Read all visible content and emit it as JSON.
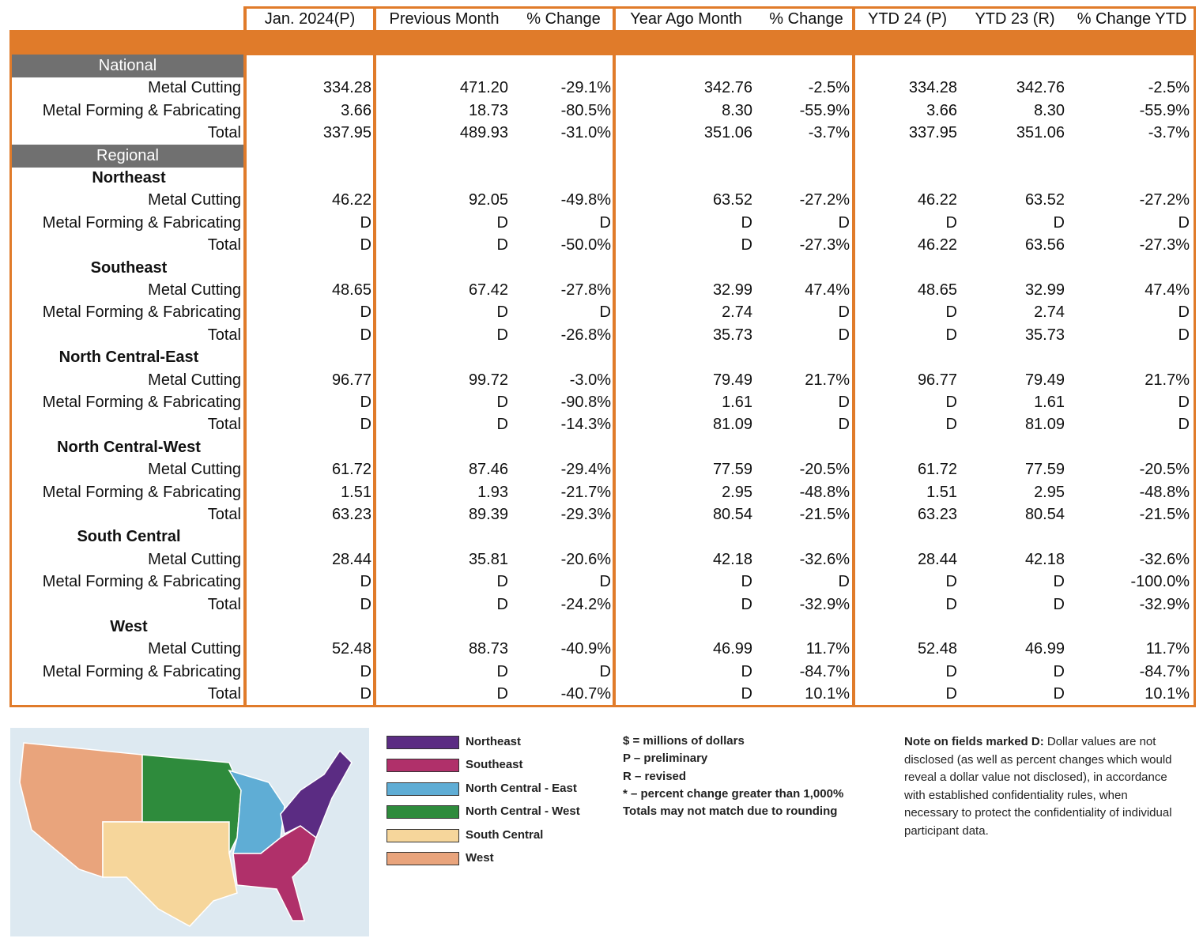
{
  "table": {
    "columns": [
      "Jan. 2024(P)",
      "Previous Month",
      "% Change",
      "Year Ago Month",
      "% Change",
      "YTD 24 (P)",
      "YTD 23 (R)",
      "% Change YTD"
    ],
    "national": {
      "title": "National",
      "rows": [
        {
          "label": "Metal Cutting",
          "cells": [
            "334.28",
            "471.20",
            "-29.1%",
            "342.76",
            "-2.5%",
            "334.28",
            "342.76",
            "-2.5%"
          ]
        },
        {
          "label": "Metal Forming & Fabricating",
          "cells": [
            "3.66",
            "18.73",
            "-80.5%",
            "8.30",
            "-55.9%",
            "3.66",
            "8.30",
            "-55.9%"
          ]
        },
        {
          "label": "Total",
          "cells": [
            "337.95",
            "489.93",
            "-31.0%",
            "351.06",
            "-3.7%",
            "337.95",
            "351.06",
            "-3.7%"
          ]
        }
      ]
    },
    "regional": {
      "title": "Regional",
      "regions": [
        {
          "name": "Northeast",
          "rows": [
            {
              "label": "Metal Cutting",
              "cells": [
                "46.22",
                "92.05",
                "-49.8%",
                "63.52",
                "-27.2%",
                "46.22",
                "63.52",
                "-27.2%"
              ]
            },
            {
              "label": "Metal Forming & Fabricating",
              "cells": [
                "D",
                "D",
                "D",
                "D",
                "D",
                "D",
                "D",
                "D"
              ]
            },
            {
              "label": "Total",
              "cells": [
                "D",
                "D",
                "-50.0%",
                "D",
                "-27.3%",
                "46.22",
                "63.56",
                "-27.3%"
              ]
            }
          ]
        },
        {
          "name": "Southeast",
          "rows": [
            {
              "label": "Metal Cutting",
              "cells": [
                "48.65",
                "67.42",
                "-27.8%",
                "32.99",
                "47.4%",
                "48.65",
                "32.99",
                "47.4%"
              ]
            },
            {
              "label": "Metal Forming & Fabricating",
              "cells": [
                "D",
                "D",
                "D",
                "2.74",
                "D",
                "D",
                "2.74",
                "D"
              ]
            },
            {
              "label": "Total",
              "cells": [
                "D",
                "D",
                "-26.8%",
                "35.73",
                "D",
                "D",
                "35.73",
                "D"
              ]
            }
          ]
        },
        {
          "name": "North Central-East",
          "rows": [
            {
              "label": "Metal Cutting",
              "cells": [
                "96.77",
                "99.72",
                "-3.0%",
                "79.49",
                "21.7%",
                "96.77",
                "79.49",
                "21.7%"
              ]
            },
            {
              "label": "Metal Forming & Fabricating",
              "cells": [
                "D",
                "D",
                "-90.8%",
                "1.61",
                "D",
                "D",
                "1.61",
                "D"
              ]
            },
            {
              "label": "Total",
              "cells": [
                "D",
                "D",
                "-14.3%",
                "81.09",
                "D",
                "D",
                "81.09",
                "D"
              ]
            }
          ]
        },
        {
          "name": "North Central-West",
          "rows": [
            {
              "label": "Metal Cutting",
              "cells": [
                "61.72",
                "87.46",
                "-29.4%",
                "77.59",
                "-20.5%",
                "61.72",
                "77.59",
                "-20.5%"
              ]
            },
            {
              "label": "Metal Forming & Fabricating",
              "cells": [
                "1.51",
                "1.93",
                "-21.7%",
                "2.95",
                "-48.8%",
                "1.51",
                "2.95",
                "-48.8%"
              ]
            },
            {
              "label": "Total",
              "cells": [
                "63.23",
                "89.39",
                "-29.3%",
                "80.54",
                "-21.5%",
                "63.23",
                "80.54",
                "-21.5%"
              ]
            }
          ]
        },
        {
          "name": "South Central",
          "rows": [
            {
              "label": "Metal Cutting",
              "cells": [
                "28.44",
                "35.81",
                "-20.6%",
                "42.18",
                "-32.6%",
                "28.44",
                "42.18",
                "-32.6%"
              ]
            },
            {
              "label": "Metal Forming & Fabricating",
              "cells": [
                "D",
                "D",
                "D",
                "D",
                "D",
                "D",
                "D",
                "-100.0%"
              ]
            },
            {
              "label": "Total",
              "cells": [
                "D",
                "D",
                "-24.2%",
                "D",
                "-32.9%",
                "D",
                "D",
                "-32.9%"
              ]
            }
          ]
        },
        {
          "name": "West",
          "rows": [
            {
              "label": "Metal Cutting",
              "cells": [
                "52.48",
                "88.73",
                "-40.9%",
                "46.99",
                "11.7%",
                "52.48",
                "46.99",
                "11.7%"
              ]
            },
            {
              "label": "Metal Forming & Fabricating",
              "cells": [
                "D",
                "D",
                "D",
                "D",
                "-84.7%",
                "D",
                "D",
                "-84.7%"
              ]
            },
            {
              "label": "Total",
              "cells": [
                "D",
                "D",
                "-40.7%",
                "D",
                "10.1%",
                "D",
                "D",
                "10.1%"
              ]
            }
          ]
        }
      ]
    }
  },
  "legend": [
    {
      "label": "Northeast",
      "color": "#5b2c83"
    },
    {
      "label": "Southeast",
      "color": "#b0306a"
    },
    {
      "label": "North Central - East",
      "color": "#5fadd5"
    },
    {
      "label": "North Central - West",
      "color": "#2e8b3c"
    },
    {
      "label": "South Central",
      "color": "#f6d69b"
    },
    {
      "label": "West",
      "color": "#e9a47c"
    }
  ],
  "notes": [
    "$ = millions of dollars",
    "P – preliminary",
    "R – revised",
    "* – percent change greater than 1,000%",
    "Totals may not match due to rounding"
  ],
  "note_d": {
    "heading": "Note on fields marked D:",
    "text": "Dollar values are not disclosed (as well as percent changes which would reveal a dollar value not disclosed), in accordance with established confidentiality rules, when necessary to protect the confidentiality of individual participant data."
  }
}
